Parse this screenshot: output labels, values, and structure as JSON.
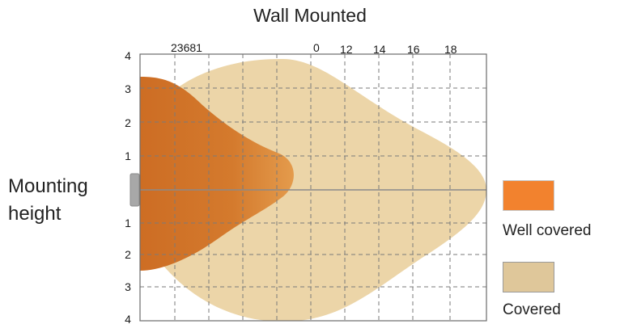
{
  "title": "Wall Mounted",
  "side_label_lines": [
    "Mounting",
    "height"
  ],
  "top_axis_labels": [
    "23681",
    "0",
    "12",
    "14",
    "16",
    "18"
  ],
  "left_axis_labels": [
    "4",
    "3",
    "2",
    "1",
    "1",
    "2",
    "3",
    "4"
  ],
  "legend": [
    {
      "label": "Well covered",
      "color": "#f2822e"
    },
    {
      "label": "Covered",
      "color": "#dfc79a"
    }
  ],
  "colors": {
    "well_covered_dark": "#cf6f26",
    "well_covered_light": "#e39a4a",
    "covered": "#ecd5a8",
    "grid": "#7a7a7a",
    "frame": "#6a6a6a",
    "mount": "#a8a8a8"
  }
}
